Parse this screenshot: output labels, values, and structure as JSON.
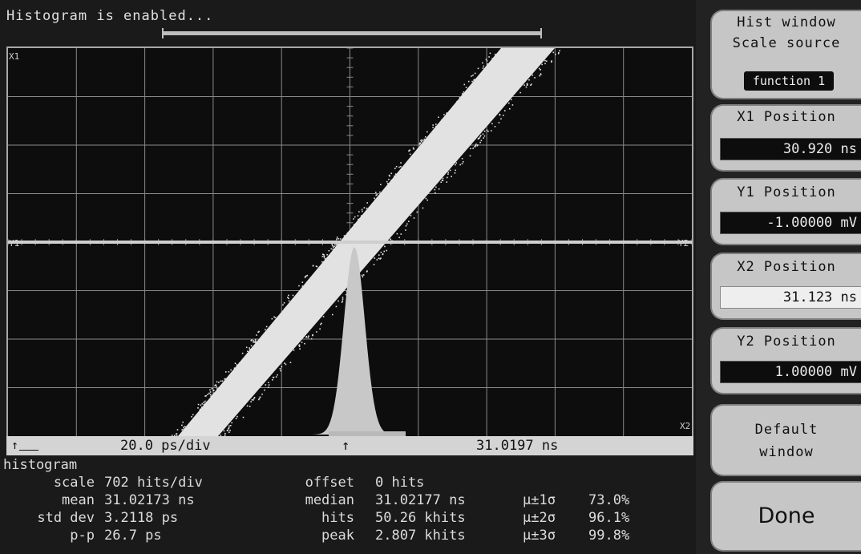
{
  "status_text": "Histogram is enabled...",
  "screen": {
    "markers": {
      "x1": "X1",
      "y1": "Y1",
      "y2": "Y2",
      "x2": "X2"
    },
    "colors": {
      "background": "#0d0d0d",
      "grid": "#8a8a8a",
      "waveform": "#e2e2e2",
      "histogram": "#c8c8c8",
      "histogram_bar": "#b9b9b9"
    }
  },
  "info_bar": {
    "ref_icon": "↑",
    "timebase": "20.0 ps/div",
    "trigger_arrow": "↑",
    "trigger_position": "31.0197 ns"
  },
  "stats": {
    "title": "histogram",
    "rows": [
      {
        "label": "scale",
        "value": "702 hits/div",
        "mlabel": "offset",
        "mvalue": "0 hits",
        "slabel": "",
        "svalue": ""
      },
      {
        "label": "mean",
        "value": "31.02173 ns",
        "mlabel": "median",
        "mvalue": "31.02177 ns",
        "slabel": "µ±1σ",
        "svalue": "73.0%"
      },
      {
        "label": "std dev",
        "value": "3.2118 ps",
        "mlabel": "hits",
        "mvalue": "50.26 khits",
        "slabel": "µ±2σ",
        "svalue": "96.1%"
      },
      {
        "label": "p-p",
        "value": "26.7 ps",
        "mlabel": "peak",
        "mvalue": "2.807 khits",
        "slabel": "µ±3σ",
        "svalue": "99.8%"
      }
    ]
  },
  "menu": {
    "header": "Hist window",
    "scale_source": {
      "label": "Scale source",
      "value": "function 1"
    },
    "x1_position": {
      "label": "X1 Position",
      "value": "30.920 ns"
    },
    "y1_position": {
      "label": "Y1 Position",
      "value": "-1.00000 mV"
    },
    "x2_position": {
      "label": "X2 Position",
      "value": "31.123 ns"
    },
    "y2_position": {
      "label": "Y2 Position",
      "value": "1.00000 mV"
    },
    "default_window": {
      "line1": "Default",
      "line2": "window"
    },
    "done": "Done"
  }
}
